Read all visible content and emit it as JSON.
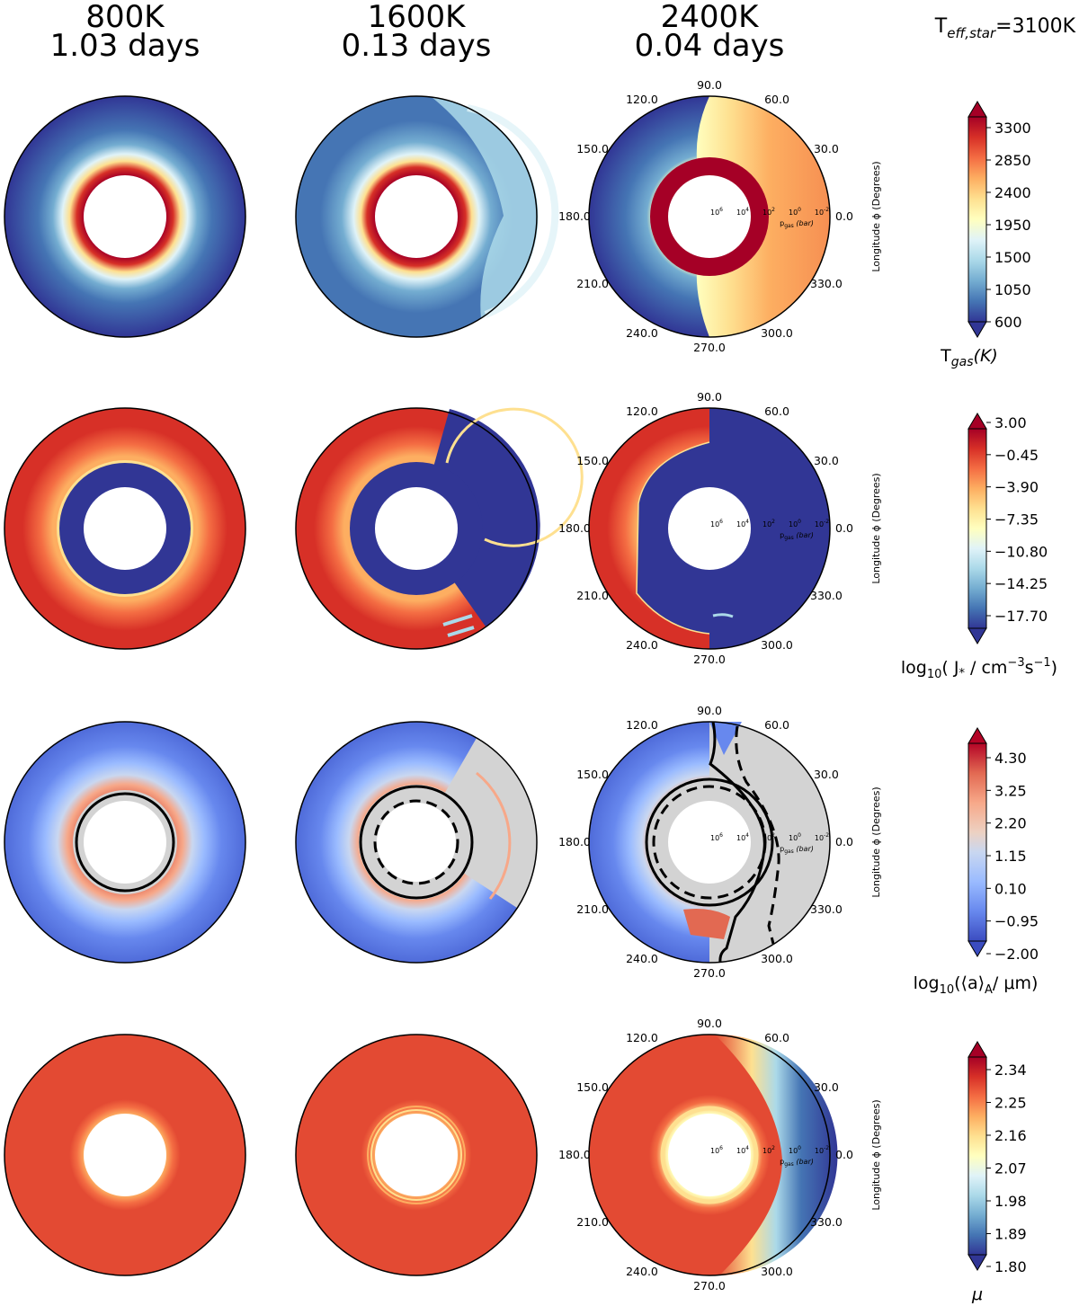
{
  "header": {
    "columns": [
      {
        "temperature": "800K",
        "period": "1.03 days"
      },
      {
        "temperature": "1600K",
        "period": "0.13 days"
      },
      {
        "temperature": "2400K",
        "period": "0.04 days"
      }
    ],
    "star_label": "T",
    "star_label_sub": "eff,star",
    "star_label_value": "=3100K"
  },
  "axes": {
    "angle_ticks": [
      "90.0",
      "60.0",
      "30.0",
      "0.0",
      "330.0",
      "300.0",
      "270.0",
      "240.0",
      "210.0",
      "180.0",
      "150.0",
      "120.0"
    ],
    "angle_values": [
      90,
      60,
      30,
      0,
      330,
      300,
      270,
      240,
      210,
      180,
      150,
      120
    ],
    "pressure_ticks": [
      "10",
      "10",
      "10",
      "10",
      "10"
    ],
    "pressure_exponents": [
      "6",
      "4",
      "2",
      "0",
      "-2"
    ],
    "pressure_label": "p",
    "pressure_label_sub": "gas",
    "pressure_label_unit": "(bar)",
    "ylabel": "Longitude ϕ (Degrees)"
  },
  "colors": {
    "colormap": [
      "#313695",
      "#4575b4",
      "#74add1",
      "#abd9e9",
      "#e0f3f8",
      "#ffffbf",
      "#fee090",
      "#fdae61",
      "#f46d43",
      "#d73027",
      "#a50026"
    ],
    "coolwarm": [
      "#3b4cc0",
      "#6788ee",
      "#9abbff",
      "#c9d7f0",
      "#edd1c2",
      "#f7a889",
      "#e26952",
      "#b40426"
    ],
    "cloud_free": "#d3d3d3"
  },
  "chart_data": [
    {
      "type": "heatmap",
      "quantity": "gas temperature",
      "colorbar": {
        "label": "T",
        "label_sub": "gas",
        "label_tail": "(K)",
        "ticks": [
          "3300",
          "2850",
          "2400",
          "1950",
          "1500",
          "1050",
          "600"
        ],
        "range": [
          600,
          3300
        ]
      },
      "panels": [
        {
          "temperature": "800K",
          "inner": 3300,
          "outer": 600,
          "dayside": 800
        },
        {
          "temperature": "1600K",
          "inner": 3300,
          "outer": 800,
          "dayside": 1400
        },
        {
          "temperature": "2400K",
          "inner": 3300,
          "outer": 700,
          "dayside": 2700
        }
      ]
    },
    {
      "type": "heatmap",
      "quantity": "nucleation rate",
      "colorbar": {
        "label": "log",
        "label_sub": "10",
        "label_tail": "( J",
        "label_tail_sub": "*",
        "label_tail2": " / cm",
        "label_tail_sup": "−3",
        "label_tail3": "s",
        "label_tail_sup2": "−1",
        "label_tail4": ")",
        "ticks": [
          "3.00",
          "−0.45",
          "−3.90",
          "−7.35",
          "−10.80",
          "−14.25",
          "−17.70"
        ],
        "range": [
          -18,
          3
        ]
      },
      "panels": [
        {
          "temperature": "800K",
          "nucleation_band": -1
        },
        {
          "temperature": "1600K",
          "nucleation_band": -3
        },
        {
          "temperature": "2400K",
          "nucleation_band": -1,
          "dayside": -18
        }
      ]
    },
    {
      "type": "heatmap",
      "quantity": "mean particle size",
      "colorbar": {
        "label": "log",
        "label_sub": "10",
        "label_tail": "(⟨a⟩",
        "label_tail_sub": "A",
        "label_tail2": "/ μm)",
        "ticks": [
          "4.30",
          "3.25",
          "2.20",
          "1.15",
          "0.10",
          "−0.95",
          "−2.00"
        ],
        "range": [
          -2,
          4.8
        ]
      },
      "panels": [
        {
          "temperature": "800K",
          "inner": 2.6,
          "outer": -1.5
        },
        {
          "temperature": "1600K",
          "inner": 2.6,
          "outer": -1.2
        },
        {
          "temperature": "2400K",
          "inner": 2.6,
          "outer": -1.0
        }
      ]
    },
    {
      "type": "heatmap",
      "quantity": "mean molecular weight",
      "colorbar": {
        "label": "μ",
        "label_sub": "",
        "label_tail": "",
        "ticks": [
          "2.34",
          "2.25",
          "2.16",
          "2.07",
          "1.98",
          "1.89",
          "1.80"
        ],
        "range": [
          1.8,
          2.36
        ]
      },
      "panels": [
        {
          "temperature": "800K",
          "value": 2.33
        },
        {
          "temperature": "1600K",
          "value": 2.33
        },
        {
          "temperature": "2400K",
          "value": 2.33,
          "dayside_min": 1.82
        }
      ]
    }
  ]
}
